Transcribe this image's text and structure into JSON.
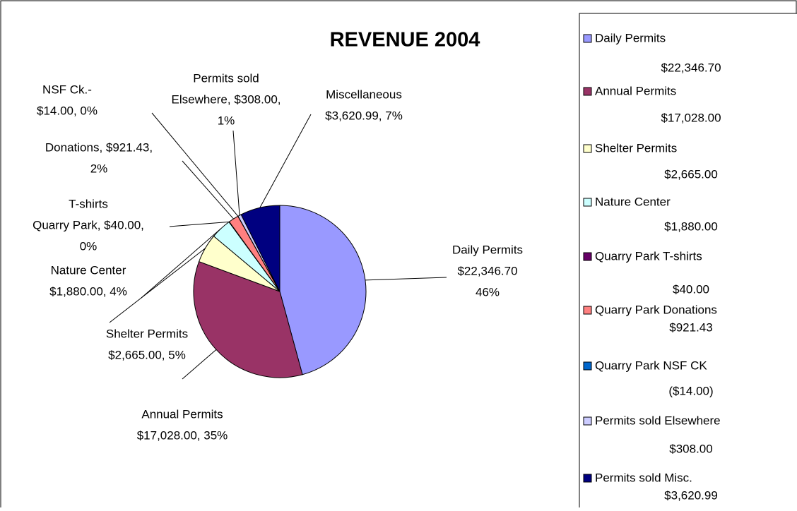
{
  "chart_data": {
    "type": "pie",
    "title": "REVENUE 2004",
    "categories": [
      "Daily Permits",
      "Annual Permits",
      "Shelter Permits",
      "Nature Center",
      "Quarry Park T-shirts",
      "Quarry Park Donations",
      "Quarry Park NSF CK",
      "Permits sold Elsewhere",
      "Permits sold Misc."
    ],
    "values": [
      22346.7,
      17028.0,
      2665.0,
      1880.0,
      40.0,
      921.43,
      14.0,
      308.0,
      3620.99
    ],
    "colors": [
      "#9999ff",
      "#993366",
      "#ffffcc",
      "#ccffff",
      "#660066",
      "#ff8080",
      "#0066cc",
      "#ccccff",
      "#000080"
    ],
    "data_labels": [
      [
        "Daily Permits",
        "$22,346.70",
        "46%"
      ],
      [
        "Annual Permits",
        "$17,028.00, 35%"
      ],
      [
        "Shelter Permits",
        "$2,665.00, 5%"
      ],
      [
        "Nature  Center",
        "$1,880.00, 4%"
      ],
      [
        "T-shirts",
        "Quarry Park, $40.00,",
        "0%"
      ],
      [
        "Donations, $921.43,",
        "2%"
      ],
      [
        "NSF Ck.-",
        "$14.00, 0%"
      ],
      [
        "Permits sold",
        "Elsewhere, $308.00,",
        "1%"
      ],
      [
        "Miscellaneous",
        "$3,620.99, 7%"
      ]
    ],
    "legend_value_labels": [
      "$22,346.70",
      "$17,028.00",
      "$2,665.00",
      "$1,880.00",
      "$40.00",
      "$921.43",
      "($14.00)",
      "$308.00",
      "$3,620.99"
    ],
    "legend": "right"
  }
}
